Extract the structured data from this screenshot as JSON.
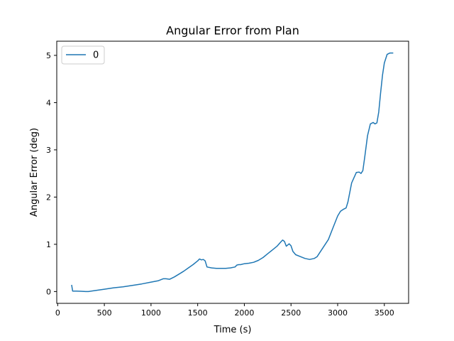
{
  "chart_data": {
    "type": "line",
    "title": "Angular Error from Plan",
    "xlabel": "Time (s)",
    "ylabel": "Angular Error (deg)",
    "xlim": [
      -10,
      3760
    ],
    "ylim": [
      -0.25,
      5.3
    ],
    "xticks": [
      0,
      500,
      1000,
      1500,
      2000,
      2500,
      3000,
      3500
    ],
    "yticks": [
      0,
      1,
      2,
      3,
      4,
      5
    ],
    "grid": false,
    "legend": {
      "placement": "top-left",
      "entries": [
        "0"
      ]
    },
    "series": [
      {
        "name": "0",
        "color": "#1f77b4",
        "x": [
          150,
          160,
          200,
          250,
          300,
          330,
          400,
          500,
          600,
          700,
          800,
          900,
          1000,
          1080,
          1130,
          1160,
          1200,
          1250,
          1300,
          1350,
          1400,
          1450,
          1500,
          1520,
          1540,
          1560,
          1580,
          1600,
          1650,
          1700,
          1750,
          1800,
          1850,
          1900,
          1920,
          1940,
          1960,
          2000,
          2050,
          2100,
          2150,
          2200,
          2250,
          2300,
          2350,
          2390,
          2410,
          2430,
          2450,
          2480,
          2500,
          2520,
          2550,
          2600,
          2650,
          2700,
          2750,
          2780,
          2800,
          2850,
          2900,
          2950,
          3000,
          3030,
          3060,
          3090,
          3110,
          3150,
          3200,
          3230,
          3250,
          3270,
          3290,
          3320,
          3350,
          3380,
          3400,
          3420,
          3440,
          3460,
          3480,
          3500,
          3530,
          3560,
          3590
        ],
        "values": [
          0.13,
          0.01,
          0.01,
          0.005,
          0.0,
          0.0,
          0.02,
          0.05,
          0.08,
          0.1,
          0.13,
          0.16,
          0.2,
          0.23,
          0.27,
          0.27,
          0.26,
          0.31,
          0.37,
          0.43,
          0.5,
          0.57,
          0.65,
          0.69,
          0.67,
          0.68,
          0.65,
          0.52,
          0.5,
          0.49,
          0.49,
          0.49,
          0.5,
          0.52,
          0.56,
          0.57,
          0.57,
          0.59,
          0.6,
          0.62,
          0.66,
          0.72,
          0.8,
          0.88,
          0.96,
          1.05,
          1.09,
          1.06,
          0.96,
          1.01,
          0.97,
          0.85,
          0.78,
          0.74,
          0.7,
          0.68,
          0.7,
          0.74,
          0.8,
          0.95,
          1.1,
          1.35,
          1.6,
          1.7,
          1.74,
          1.77,
          1.9,
          2.3,
          2.52,
          2.53,
          2.5,
          2.56,
          2.85,
          3.3,
          3.55,
          3.58,
          3.55,
          3.57,
          3.8,
          4.2,
          4.58,
          4.84,
          5.02,
          5.05,
          5.05
        ]
      }
    ]
  }
}
